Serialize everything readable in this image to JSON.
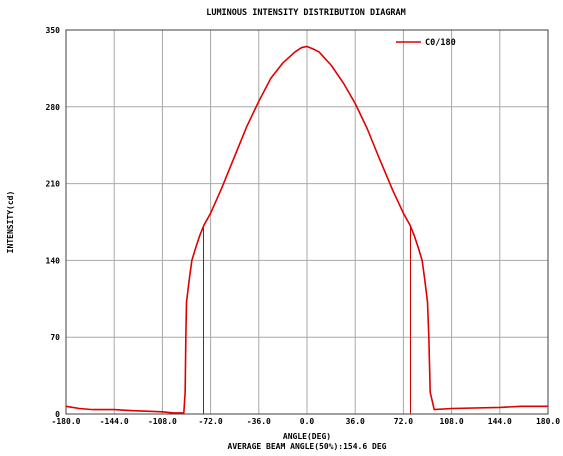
{
  "chart_data": {
    "type": "line",
    "title": "LUMINOUS INTENSITY DISTRIBUTION DIAGRAM",
    "xlabel": "ANGLE(DEG)",
    "ylabel": "INTENSITY(cd)",
    "footer": "AVERAGE BEAM ANGLE(50%):154.6 DEG",
    "xlim": [
      -180,
      180
    ],
    "ylim": [
      0,
      350
    ],
    "x_ticks": [
      "-180.0",
      "-144.0",
      "-108.0",
      "-72.0",
      "-36.0",
      "0.0",
      "36.0",
      "72.0",
      "108.0",
      "144.0",
      "180.0"
    ],
    "y_ticks": [
      "0",
      "70",
      "140",
      "210",
      "280",
      "350"
    ],
    "grid": true,
    "legend_position": "top-right",
    "series": [
      {
        "name": "C0/180",
        "color": "#e00000",
        "x": [
          -180,
          -170,
          -160,
          -144,
          -130,
          -108,
          -100,
          -92,
          -91,
          -90.5,
          -90,
          -88,
          -86,
          -83,
          -80,
          -77,
          -72,
          -64,
          -54,
          -45,
          -36,
          -27,
          -18,
          -9,
          -4,
          0,
          4,
          9,
          18,
          27,
          36,
          45,
          54,
          64,
          72,
          77,
          80,
          83,
          86,
          88,
          90,
          91,
          92,
          95,
          108,
          144,
          160,
          180
        ],
        "values": [
          7,
          5,
          4,
          4,
          3,
          2,
          1,
          1,
          20,
          70,
          102,
          122,
          140,
          152,
          163,
          172,
          183,
          205,
          235,
          262,
          285,
          306,
          320,
          330,
          334,
          335,
          333,
          330,
          318,
          302,
          283,
          260,
          233,
          204,
          183,
          172,
          163,
          152,
          140,
          122,
          102,
          70,
          20,
          4,
          5,
          6,
          7,
          7
        ]
      }
    ],
    "beam_markers": [
      -77.3,
      77.3
    ]
  }
}
